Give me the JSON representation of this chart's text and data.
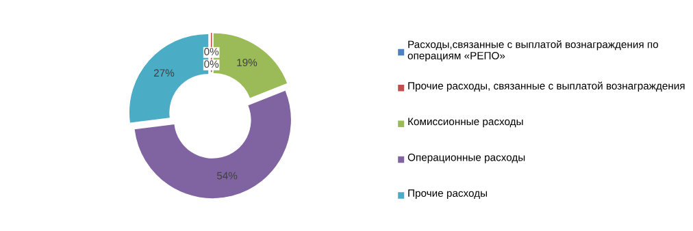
{
  "chart_data": {
    "type": "donut",
    "categories": [
      "Расходы,связанные с выплатой вознаграждения по операциям «РЕПО»",
      "Прочие расходы, связанные с выплатой вознаграждения",
      "Комиссионные расходы",
      "Операционные расходы",
      "Прочие расходы"
    ],
    "values": [
      0,
      0,
      19,
      54,
      27
    ],
    "colors": [
      "#4f81bd",
      "#c0504d",
      "#9bbb59",
      "#8064a2",
      "#4bacc6"
    ],
    "value_labels": [
      "0%",
      "0%",
      "19%",
      "54%",
      "27%"
    ],
    "legend": "right"
  }
}
